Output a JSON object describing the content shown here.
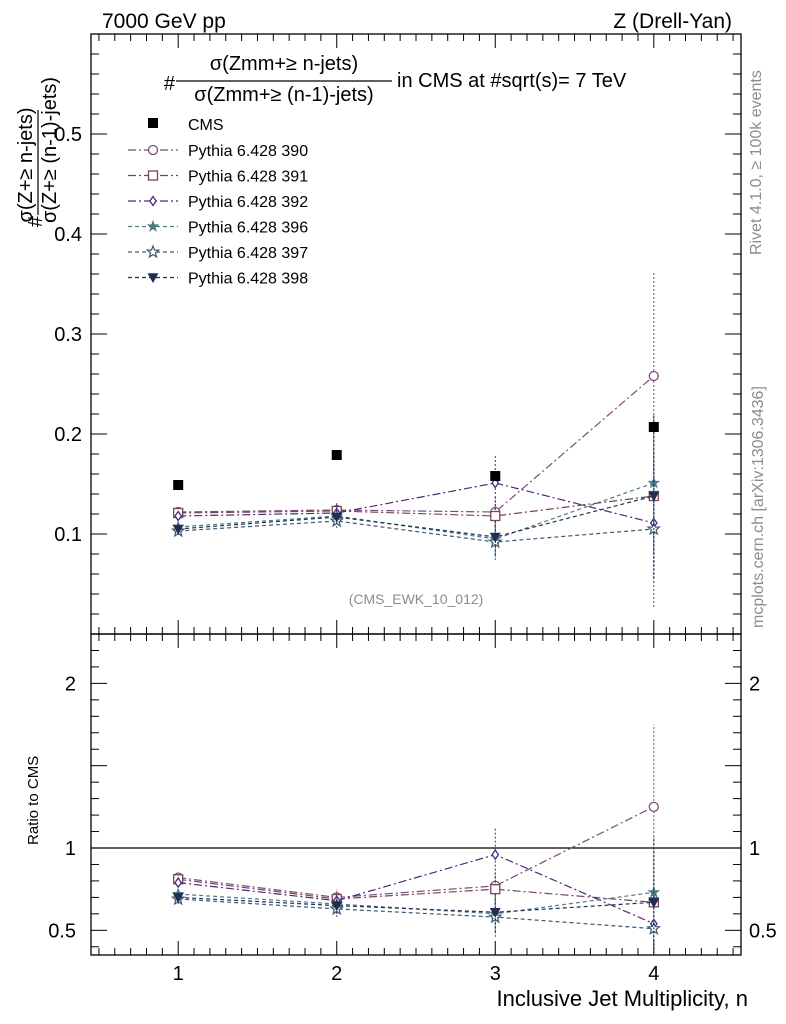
{
  "header": {
    "left": "7000 GeV pp",
    "right": "Z (Drell-Yan)"
  },
  "side_labels": {
    "rivet": "Rivet 4.1.0, ≥ 100k events",
    "mcplots": "mcplots.cern.ch [arXiv:1306.3436]"
  },
  "title": {
    "hash": "#",
    "numerator": "σ(Zmm+≥ n-jets)",
    "denominator": "σ(Zmm+≥ (n-1)-jets)",
    "suffix": "in CMS at #sqrt(s)= 7 TeV"
  },
  "ylabel": {
    "hash": "#",
    "numerator": "σ(Z+≥ n-jets)",
    "denominator": "σ(Z+≥ (n-1)-jets)"
  },
  "analysis_label": "(CMS_EWK_10_012)",
  "xlabel": "Inclusive Jet Multiplicity, n",
  "ratio_ylabel": "Ratio to CMS",
  "chart_data": {
    "type": "scatter",
    "x": [
      1,
      2,
      3,
      4
    ],
    "xlim": [
      0.45,
      4.55
    ],
    "xticks": [
      "1",
      "2",
      "3",
      "4"
    ],
    "main": {
      "ylim": [
        0,
        0.6
      ],
      "yticks": [
        {
          "v": 0.1,
          "label": "0.1"
        },
        {
          "v": 0.2,
          "label": "0.2"
        },
        {
          "v": 0.3,
          "label": "0.3"
        },
        {
          "v": 0.4,
          "label": "0.4"
        },
        {
          "v": 0.5,
          "label": "0.5"
        }
      ],
      "data_series": {
        "name": "CMS",
        "color": "#000000",
        "values": [
          0.149,
          0.179,
          0.158,
          0.207
        ]
      },
      "mc_series": [
        {
          "name": "Pythia 6.428 390",
          "marker": "circle-open",
          "dash": "dashdot",
          "color": "#7b4a7d",
          "values": [
            0.122,
            0.124,
            0.122,
            0.258
          ],
          "err": [
            0.004,
            0.007,
            0.015,
            0.103
          ]
        },
        {
          "name": "Pythia 6.428 391",
          "marker": "square-open",
          "dash": "dashdot",
          "color": "#7a4457",
          "values": [
            0.121,
            0.123,
            0.118,
            0.138
          ],
          "err": [
            0.004,
            0.007,
            0.014,
            0.07
          ]
        },
        {
          "name": "Pythia 6.428 392",
          "marker": "diamond-open",
          "dash": "dashdot",
          "color": "#4a2a7e",
          "values": [
            0.118,
            0.121,
            0.151,
            0.111
          ],
          "err": [
            0.004,
            0.007,
            0.027,
            0.06
          ]
        },
        {
          "name": "Pythia 6.428 396",
          "marker": "star-filled",
          "dash": "dashed",
          "color": "#4f7a86",
          "values": [
            0.107,
            0.118,
            0.095,
            0.151
          ],
          "err": [
            0.004,
            0.007,
            0.018,
            0.07
          ]
        },
        {
          "name": "Pythia 6.428 397",
          "marker": "star-open",
          "dash": "dashed",
          "color": "#3a5a72",
          "values": [
            0.103,
            0.113,
            0.092,
            0.105
          ],
          "err": [
            0.004,
            0.007,
            0.018,
            0.078
          ]
        },
        {
          "name": "Pythia 6.428 398",
          "marker": "triangle-down-filled",
          "dash": "dashed",
          "color": "#1f2f52",
          "values": [
            0.105,
            0.117,
            0.097,
            0.138
          ],
          "err": [
            0.004,
            0.007,
            0.018,
            0.082
          ]
        }
      ]
    },
    "ratio": {
      "ylim": [
        0.35,
        2.3
      ],
      "reference": 1,
      "yticks": [
        {
          "v": 0.5,
          "label": "0.5"
        },
        {
          "v": 1,
          "label": "1"
        },
        {
          "v": 2,
          "label": "2"
        }
      ],
      "series": [
        {
          "values": [
            0.82,
            0.7,
            0.77,
            1.25
          ],
          "err": [
            0.03,
            0.05,
            0.1,
            0.5
          ]
        },
        {
          "values": [
            0.81,
            0.69,
            0.75,
            0.67
          ],
          "err": [
            0.03,
            0.05,
            0.1,
            0.34
          ]
        },
        {
          "values": [
            0.79,
            0.68,
            0.96,
            0.54
          ],
          "err": [
            0.03,
            0.05,
            0.17,
            0.3
          ]
        },
        {
          "values": [
            0.72,
            0.66,
            0.6,
            0.73
          ],
          "err": [
            0.03,
            0.05,
            0.12,
            0.34
          ]
        },
        {
          "values": [
            0.69,
            0.63,
            0.58,
            0.51
          ],
          "err": [
            0.03,
            0.05,
            0.12,
            0.38
          ]
        },
        {
          "values": [
            0.7,
            0.65,
            0.61,
            0.67
          ],
          "err": [
            0.03,
            0.05,
            0.12,
            0.4
          ]
        }
      ]
    }
  }
}
